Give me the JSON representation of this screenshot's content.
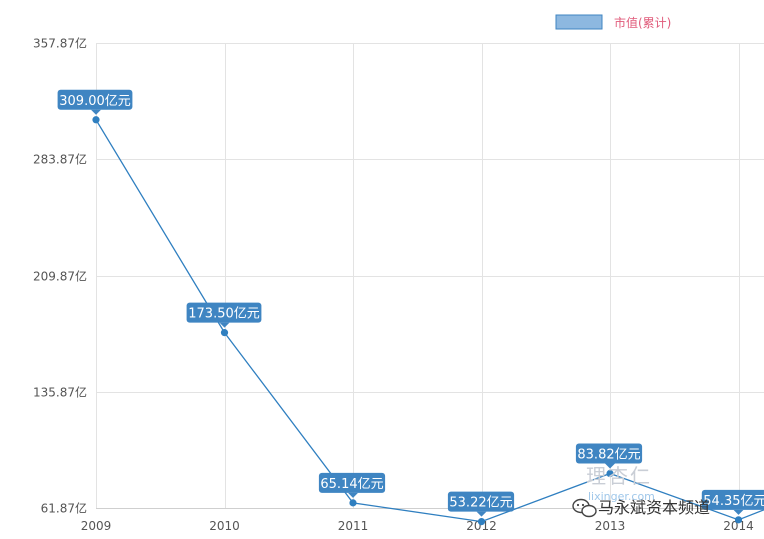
{
  "chart_data": {
    "type": "line",
    "categories": [
      "2009",
      "2010",
      "2011",
      "2012",
      "2013",
      "2014"
    ],
    "series": [
      {
        "name": "市值(累计)",
        "values": [
          309.0,
          173.5,
          65.14,
          53.22,
          83.82,
          54.35
        ],
        "labels": [
          "309.00亿元",
          "173.50亿元",
          "65.14亿元",
          "53.22亿元",
          "83.82亿元",
          "54.35亿元"
        ]
      }
    ],
    "y_ticks": [
      61.87,
      135.87,
      209.87,
      283.87,
      357.87
    ],
    "y_tick_labels": [
      "61.87亿",
      "135.87亿",
      "209.87亿",
      "283.87亿",
      "357.87亿"
    ],
    "ylim": [
      61.87,
      357.87
    ],
    "title": "",
    "xlabel": "",
    "ylabel": "",
    "grid": true,
    "legend_position": "top-right"
  },
  "colors": {
    "line": "#2f7fc0",
    "label_bg": "#3f85c2",
    "legend_swatch": "#8db8e0",
    "legend_text": "#e05a7a",
    "grid": "#e3e3e3"
  },
  "watermark": {
    "cn": "理杏仁",
    "url": "lixinger.com"
  },
  "overlay": {
    "wechat_text": "马永斌资本频道",
    "icon": "wechat-icon"
  }
}
